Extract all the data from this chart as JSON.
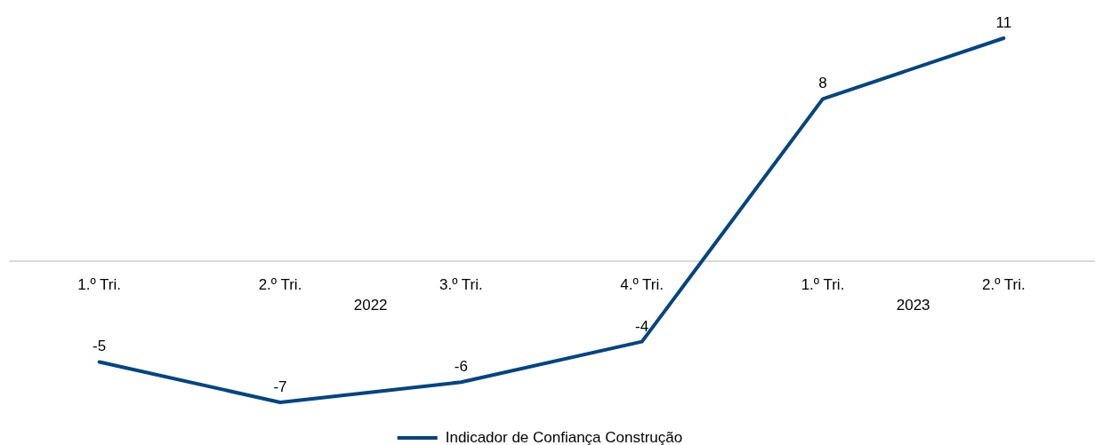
{
  "chart_data": {
    "type": "line",
    "categories": [
      "1.º Tri.",
      "2.º Tri.",
      "3.º Tri.",
      "4.º Tri.",
      "1.º Tri.",
      "2.º Tri."
    ],
    "series": [
      {
        "name": "Indicador de Confiança Construção",
        "color": "#004586",
        "values": [
          -5,
          -7,
          -6,
          -4,
          8,
          11
        ]
      }
    ],
    "annotations": [
      "2022",
      "2023"
    ],
    "data_labels": true,
    "legend": "bottom",
    "tick_labels": "x",
    "line_style": "solid"
  }
}
